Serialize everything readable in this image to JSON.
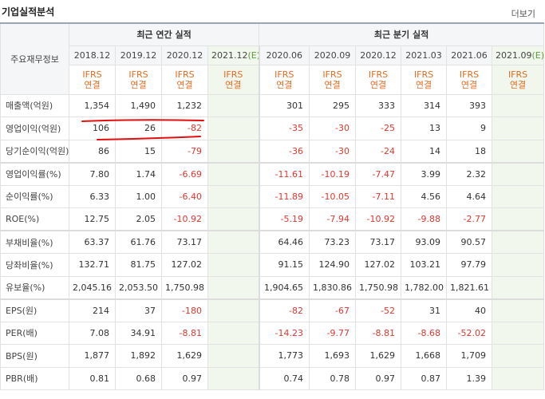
{
  "header": {
    "title": "기업실적분석",
    "more_label": "더보기"
  },
  "table": {
    "row_header": "주요재무정보",
    "group_annual": "최근 연간 실적",
    "group_quarterly": "최근 분기 실적",
    "periods": [
      "2018.12",
      "2019.12",
      "2020.12",
      "2021.12",
      "2020.06",
      "2020.09",
      "2020.12",
      "2021.03",
      "2021.06",
      "2021.09"
    ],
    "estimate_suffix": "(E)",
    "standard_top": "IFRS",
    "standard_bottom": "연결",
    "rows": [
      {
        "label": "매출액(억원)",
        "values": [
          "1,354",
          "1,490",
          "1,232",
          "",
          "301",
          "295",
          "333",
          "314",
          "393",
          ""
        ]
      },
      {
        "label": "영업이익(억원)",
        "values": [
          "106",
          "26",
          "-82",
          "",
          "-35",
          "-30",
          "-25",
          "13",
          "9",
          ""
        ]
      },
      {
        "label": "당기순이익(억원)",
        "values": [
          "86",
          "15",
          "-79",
          "",
          "-36",
          "-30",
          "-24",
          "14",
          "18",
          ""
        ]
      },
      {
        "label": "영업이익률(%)",
        "values": [
          "7.80",
          "1.74",
          "-6.69",
          "",
          "-11.61",
          "-10.19",
          "-7.47",
          "3.99",
          "2.32",
          ""
        ]
      },
      {
        "label": "순이익률(%)",
        "values": [
          "6.33",
          "1.00",
          "-6.40",
          "",
          "-11.89",
          "-10.05",
          "-7.11",
          "4.56",
          "4.64",
          ""
        ]
      },
      {
        "label": "ROE(%)",
        "values": [
          "12.75",
          "2.05",
          "-10.92",
          "",
          "-5.19",
          "-7.94",
          "-10.92",
          "-9.88",
          "-2.77",
          ""
        ]
      },
      {
        "label": "부채비율(%)",
        "values": [
          "63.37",
          "61.76",
          "73.17",
          "",
          "64.46",
          "73.23",
          "73.17",
          "93.09",
          "90.57",
          ""
        ]
      },
      {
        "label": "당좌비율(%)",
        "values": [
          "132.71",
          "81.75",
          "127.02",
          "",
          "91.15",
          "124.90",
          "127.02",
          "103.21",
          "97.79",
          ""
        ]
      },
      {
        "label": "유보율(%)",
        "values": [
          "2,045.16",
          "2,053.50",
          "1,750.98",
          "",
          "1,904.65",
          "1,830.86",
          "1,750.98",
          "1,782.00",
          "1,821.61",
          ""
        ]
      },
      {
        "label": "EPS(원)",
        "values": [
          "214",
          "37",
          "-180",
          "",
          "-82",
          "-67",
          "-52",
          "31",
          "40",
          ""
        ]
      },
      {
        "label": "PER(배)",
        "values": [
          "7.08",
          "34.91",
          "-8.81",
          "",
          "-14.23",
          "-9.77",
          "-8.81",
          "-8.68",
          "-52.02",
          ""
        ]
      },
      {
        "label": "BPS(원)",
        "values": [
          "1,877",
          "1,892",
          "1,629",
          "",
          "1,773",
          "1,693",
          "1,629",
          "1,668",
          "1,709",
          ""
        ]
      },
      {
        "label": "PBR(배)",
        "values": [
          "0.81",
          "0.68",
          "0.97",
          "",
          "0.74",
          "0.78",
          "0.97",
          "0.87",
          "1.39",
          ""
        ]
      }
    ]
  },
  "colors": {
    "negative": "#e0382e",
    "ifrs": "#e46b1f",
    "estimate": "#5b9e3c",
    "estimate_bg": "#f1f7ec",
    "annotation": "#e01010"
  }
}
